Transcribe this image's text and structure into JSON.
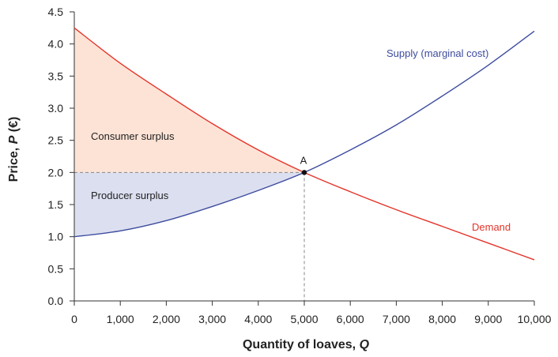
{
  "chart_data": {
    "type": "line",
    "xlabel": {
      "main": "Quantity of loaves, ",
      "italic": "Q"
    },
    "ylabel": {
      "main": "Price, ",
      "italic": "P",
      "unit": " (€)"
    },
    "xlim": [
      0,
      10000
    ],
    "ylim": [
      0,
      4.5
    ],
    "xticks": [
      {
        "value": 0,
        "label": "0"
      },
      {
        "value": 1000,
        "label": "1,000"
      },
      {
        "value": 2000,
        "label": "2,000"
      },
      {
        "value": 3000,
        "label": "3,000"
      },
      {
        "value": 4000,
        "label": "4,000"
      },
      {
        "value": 5000,
        "label": "5,000"
      },
      {
        "value": 6000,
        "label": "6,000"
      },
      {
        "value": 7000,
        "label": "7,000"
      },
      {
        "value": 8000,
        "label": "8,000"
      },
      {
        "value": 9000,
        "label": "9,000"
      },
      {
        "value": 10000,
        "label": "10,000"
      }
    ],
    "yticks": [
      {
        "value": 0,
        "label": "0.0"
      },
      {
        "value": 0.5,
        "label": "0.5"
      },
      {
        "value": 1.0,
        "label": "1.0"
      },
      {
        "value": 1.5,
        "label": "1.5"
      },
      {
        "value": 2.0,
        "label": "2.0"
      },
      {
        "value": 2.5,
        "label": "2.5"
      },
      {
        "value": 3.0,
        "label": "3.0"
      },
      {
        "value": 3.5,
        "label": "3.5"
      },
      {
        "value": 4.0,
        "label": "4.0"
      },
      {
        "value": 4.5,
        "label": "4.5"
      }
    ],
    "grid": false,
    "series": [
      {
        "name": "Supply (marginal cost)",
        "color": "#3d4c9e",
        "x": [
          0,
          1000,
          2000,
          3000,
          4000,
          5000,
          6000,
          7000,
          8000,
          9000,
          10000
        ],
        "y": [
          1.0,
          1.09,
          1.25,
          1.47,
          1.72,
          2.0,
          2.35,
          2.74,
          3.19,
          3.67,
          4.2
        ]
      },
      {
        "name": "Demand",
        "color": "#e3352b",
        "x": [
          0,
          1000,
          2000,
          3000,
          4000,
          5000,
          6000,
          7000,
          8000,
          9000,
          10000
        ],
        "y": [
          4.25,
          3.7,
          3.22,
          2.76,
          2.35,
          2.0,
          1.7,
          1.42,
          1.16,
          0.9,
          0.64
        ]
      }
    ],
    "regions": [
      {
        "name": "Consumer surplus",
        "color": "#fde3d6"
      },
      {
        "name": "Producer surplus",
        "color": "#dcdff0"
      }
    ],
    "equilibrium": {
      "label": "A",
      "x": 5000,
      "y": 2.0
    }
  }
}
